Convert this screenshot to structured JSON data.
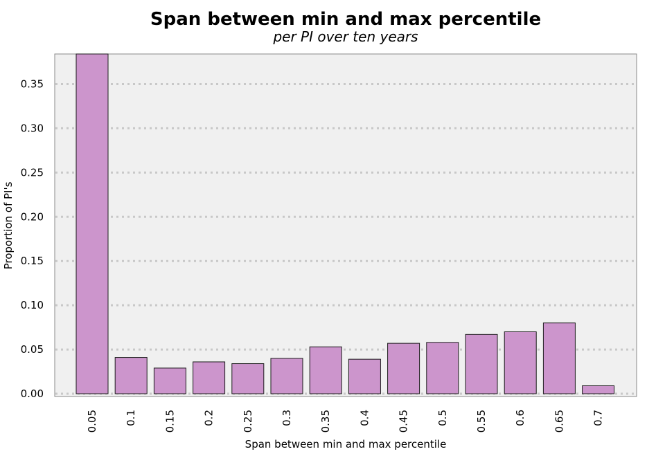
{
  "chart_data": {
    "type": "bar",
    "title": "Span between min and max percentile",
    "subtitle": "per PI over ten years",
    "xlabel": "Span between min and max percentile",
    "ylabel": "Proportion of PI's",
    "categories": [
      "0.05",
      "0.1",
      "0.15",
      "0.2",
      "0.25",
      "0.3",
      "0.35",
      "0.4",
      "0.45",
      "0.5",
      "0.55",
      "0.6",
      "0.65",
      "0.7"
    ],
    "values": [
      0.384,
      0.041,
      0.029,
      0.036,
      0.034,
      0.04,
      0.053,
      0.039,
      0.057,
      0.058,
      0.067,
      0.07,
      0.08,
      0.009
    ],
    "yticks": [
      0.0,
      0.05,
      0.1,
      0.15,
      0.2,
      0.25,
      0.3,
      0.35
    ],
    "ytick_labels": [
      "0.00",
      "0.05",
      "0.10",
      "0.15",
      "0.20",
      "0.25",
      "0.30",
      "0.35"
    ],
    "ylim": [
      -0.003,
      0.384
    ],
    "grid": true,
    "bar_color": "#cc95cc",
    "bar_edge_color": "#1a1a1a",
    "panel_background": "#f0f0f0",
    "grid_color": "#c8c8c8"
  }
}
